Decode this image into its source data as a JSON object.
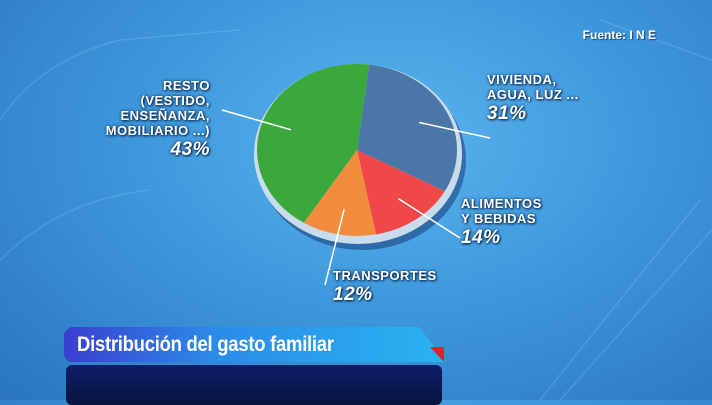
{
  "source": "Fuente: I N E",
  "banner_title": "Distribución del gasto familiar",
  "colors": {
    "vivienda": "#4a76a8",
    "alimentos": "#f04848",
    "transportes": "#f08c3c",
    "resto": "#3aa83a"
  },
  "chart_data": {
    "type": "pie",
    "slices": [
      {
        "label": [
          "VIVIENDA,",
          "AGUA, LUZ ..."
        ],
        "value": 31,
        "value_label": "31%",
        "color": "#4a76a8"
      },
      {
        "label": [
          "ALIMENTOS",
          "Y BEBIDAS"
        ],
        "value": 14,
        "value_label": "14%",
        "color": "#f04848"
      },
      {
        "label": [
          "TRANSPORTES"
        ],
        "value": 12,
        "value_label": "12%",
        "color": "#f08c3c"
      },
      {
        "label": [
          "RESTO",
          "(VESTIDO,",
          "ENSEÑANZA,",
          "MOBILIARIO ...)"
        ],
        "value": 43,
        "value_label": "43%",
        "color": "#3aa83a"
      }
    ]
  }
}
